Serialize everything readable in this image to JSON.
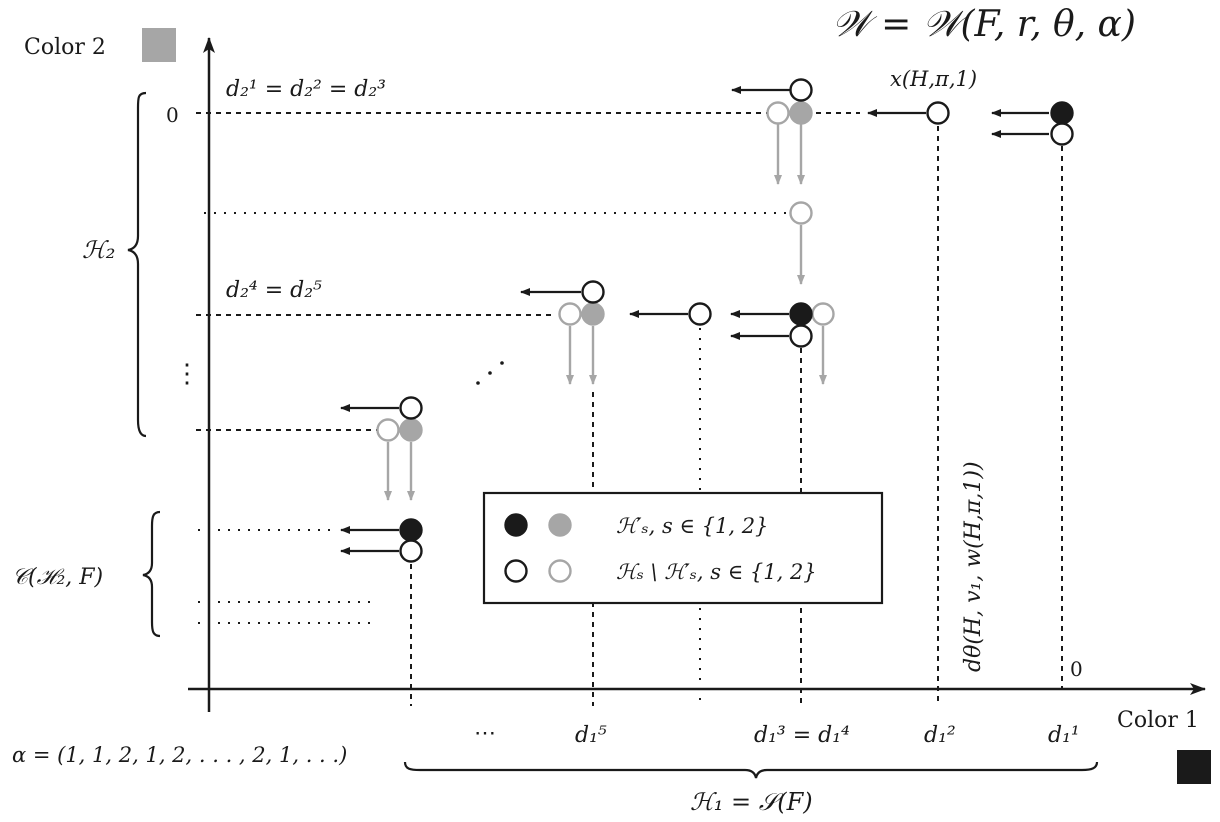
{
  "title": "𝒲 = 𝒲(F, r, θ, α)",
  "axes": {
    "x_label": "Color 1",
    "y_label": "Color 2",
    "x_zero": "0",
    "y_zero": "0"
  },
  "x_ticks": {
    "d1_5": "d₁⁵",
    "d1_3_4": "d₁³ = d₁⁴",
    "d1_2": "d₁²",
    "d1_1": "d₁¹",
    "dots": "⋯"
  },
  "y_labels": {
    "d2_123": "d₂¹ = d₂² = d₂³",
    "d2_45": "d₂⁴ = d₂⁵",
    "vdots": "⋮"
  },
  "point_label": "x(H,π,1)",
  "vertical_label": "dθ(H, v₁, w(H,π,1))",
  "braces": {
    "h2": "ℋ₂",
    "ch2f": "𝒞(ℋ₂, F)",
    "h1": "ℋ₁ = 𝒮(F)"
  },
  "alpha": "α = (1, 1, 2, 1, 2, . . . , 2, 1, . . .)",
  "legend": {
    "filled": "ℋ′ₛ, s ∈ {1, 2}",
    "hollow": "ℋₛ \\ ℋ′ₛ, s ∈ {1, 2}"
  },
  "colors": {
    "black": "#1a1a1a",
    "gray": "#a6a6a6",
    "color1_swatch": "#1a1a1a",
    "color2_swatch": "#a6a6a6"
  }
}
